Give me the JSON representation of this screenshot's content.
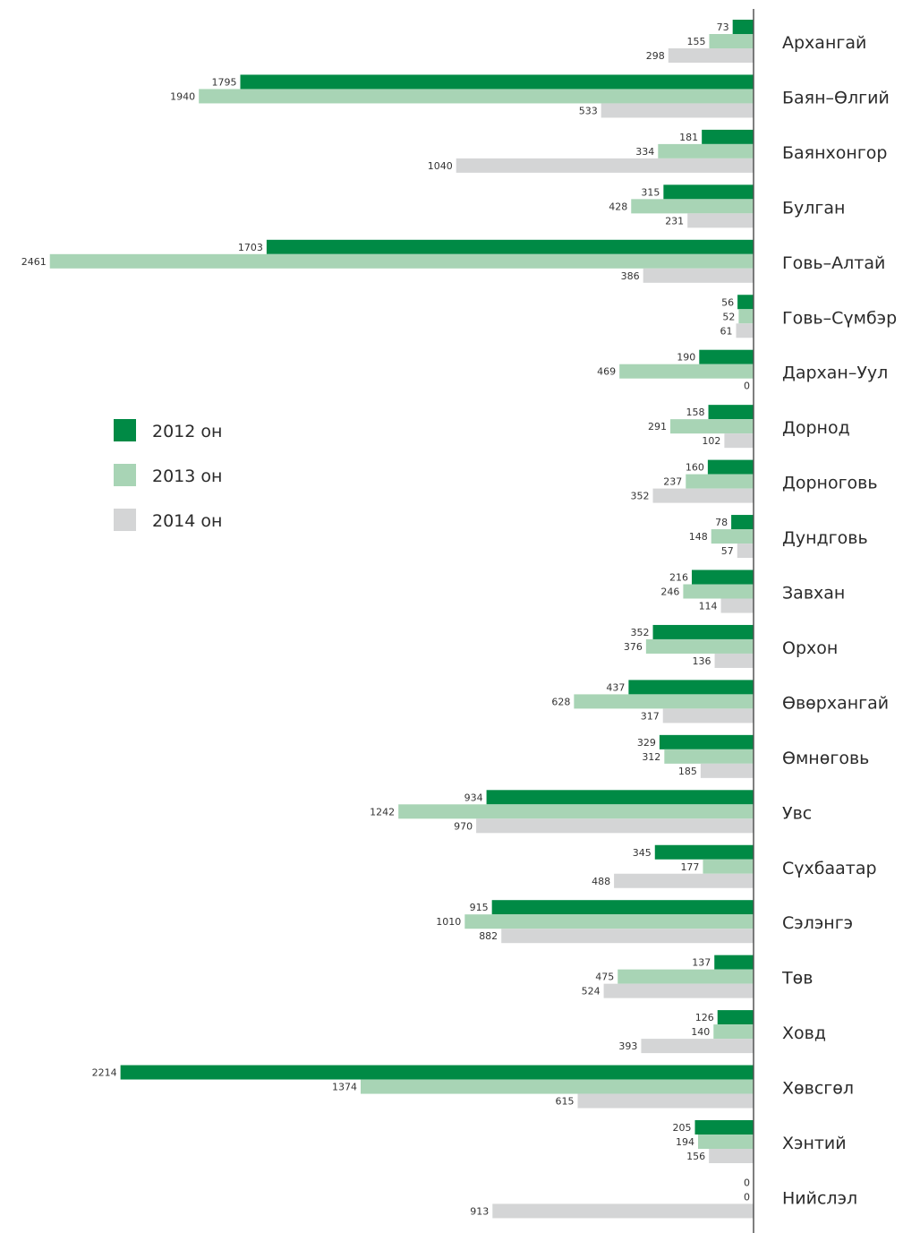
{
  "chart_data": {
    "type": "bar",
    "orientation": "horizontal",
    "title": "",
    "xlabel": "",
    "ylabel": "",
    "grid": false,
    "legend_position": "left",
    "xlim": [
      0,
      2500
    ],
    "categories": [
      "Архангай",
      "Баян–Өлгий",
      "Баянхонгор",
      "Булган",
      "Говь–Алтай",
      "Говь–Сүмбэр",
      "Дархан–Уул",
      "Дорнод",
      "Дорноговь",
      "Дундговь",
      "Завхан",
      "Орхон",
      "Өвөрхангай",
      "Өмнөговь",
      "Увс",
      "Сүхбаатар",
      "Сэлэнгэ",
      "Төв",
      "Ховд",
      "Хөвсгөл",
      "Хэнтий",
      "Нийслэл"
    ],
    "series": [
      {
        "name": "2012 он",
        "color": "#008a45",
        "values": [
          73,
          1795,
          181,
          315,
          1703,
          56,
          190,
          158,
          160,
          78,
          216,
          352,
          437,
          329,
          934,
          345,
          915,
          137,
          126,
          2214,
          205,
          0
        ]
      },
      {
        "name": "2013 он",
        "color": "#a8d4b5",
        "values": [
          155,
          1940,
          334,
          428,
          2461,
          52,
          469,
          291,
          237,
          148,
          246,
          376,
          628,
          312,
          1242,
          177,
          1010,
          475,
          140,
          1374,
          194,
          0
        ]
      },
      {
        "name": "2014 он",
        "color": "#d4d5d6",
        "values": [
          298,
          533,
          1040,
          231,
          386,
          61,
          0,
          102,
          352,
          57,
          114,
          136,
          317,
          185,
          970,
          488,
          882,
          524,
          393,
          615,
          156,
          913
        ]
      }
    ],
    "axis_color": "#555555"
  }
}
